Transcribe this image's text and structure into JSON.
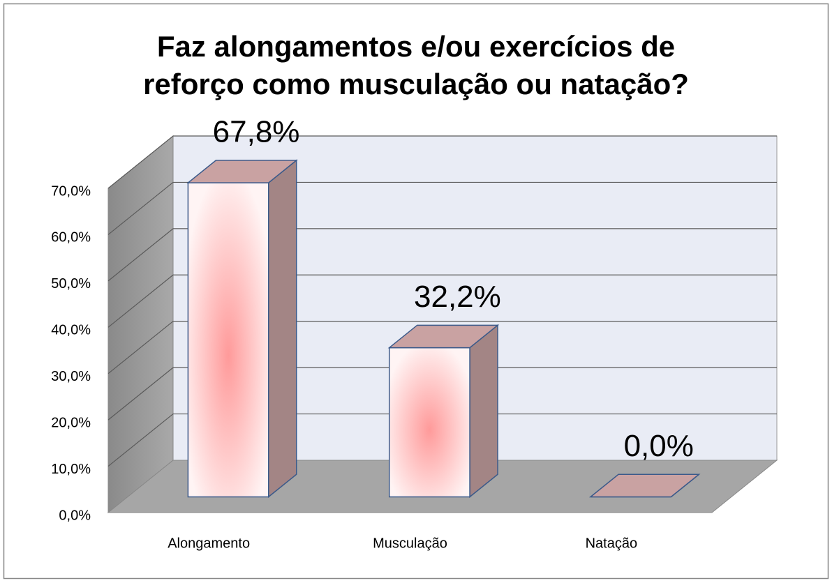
{
  "chart_data": {
    "type": "bar3d",
    "title": [
      "Faz alongamentos e/ou exercícios de",
      "reforço como musculação ou natação?"
    ],
    "categories": [
      "Alongamento",
      "Musculação",
      "Natação"
    ],
    "values": [
      67.8,
      32.2,
      0.0
    ],
    "value_labels": [
      "67,8%",
      "32,2%",
      "0,0%"
    ],
    "ylim": [
      0,
      70
    ],
    "yticks": [
      {
        "value": 0,
        "label": "0,0%"
      },
      {
        "value": 10,
        "label": "10,0%"
      },
      {
        "value": 20,
        "label": "20,0%"
      },
      {
        "value": 30,
        "label": "30,0%"
      },
      {
        "value": 40,
        "label": "40,0%"
      },
      {
        "value": 50,
        "label": "50,0%"
      },
      {
        "value": 60,
        "label": "60,0%"
      },
      {
        "value": 70,
        "label": "70,0%"
      }
    ],
    "grid": true
  }
}
